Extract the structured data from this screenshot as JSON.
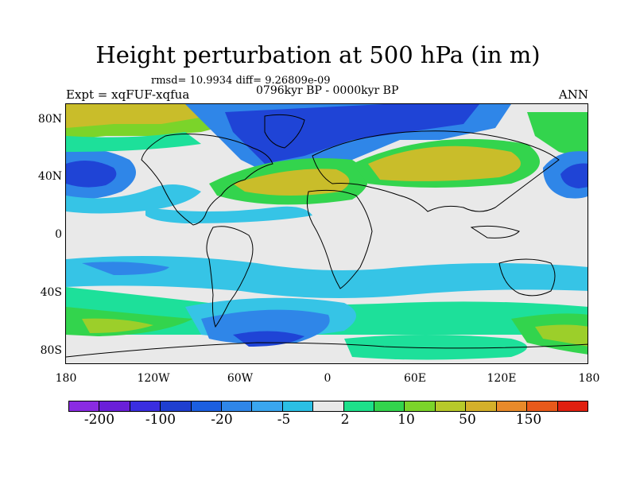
{
  "title": "Height perturbation at 500 hPa (in m)",
  "stats": "rmsd= 10.9934 diff= 9.26809e-09",
  "subtitle": "0796kyr BP - 0000kyr BP",
  "expt": "Expt = xqFUF-xqfua",
  "season": "ANN",
  "lat_ticks": [
    "80N",
    "40N",
    "0",
    "40S",
    "80S"
  ],
  "lon_ticks": [
    "180",
    "120W",
    "60W",
    "0",
    "60E",
    "120E",
    "180"
  ],
  "colorbar": {
    "colors": [
      "#8a2be2",
      "#6a1fd8",
      "#3a2ee0",
      "#1f3fd0",
      "#1c5fe0",
      "#2f86e8",
      "#3aa6ef",
      "#2bbfe4",
      "#e8e8e8",
      "#1de08a",
      "#33d44d",
      "#7bd42a",
      "#b7c92a",
      "#d4b02a",
      "#e88a2a",
      "#e85a1a",
      "#e02010"
    ],
    "labels": [
      "-200",
      "-100",
      "-20",
      "-5",
      "2",
      "10",
      "50",
      "150"
    ]
  },
  "map": {
    "palette": {
      "land_outline": "#000000",
      "neutral": "#e9e9e9",
      "light_blue": "#36c4e6",
      "blue": "#2f86e8",
      "dark_blue": "#1f44d6",
      "teal": "#1de09a",
      "green": "#33d44d",
      "yellow_green": "#9ccf2a",
      "yellow": "#c9bd2a",
      "orange": "#d4a62a"
    }
  }
}
